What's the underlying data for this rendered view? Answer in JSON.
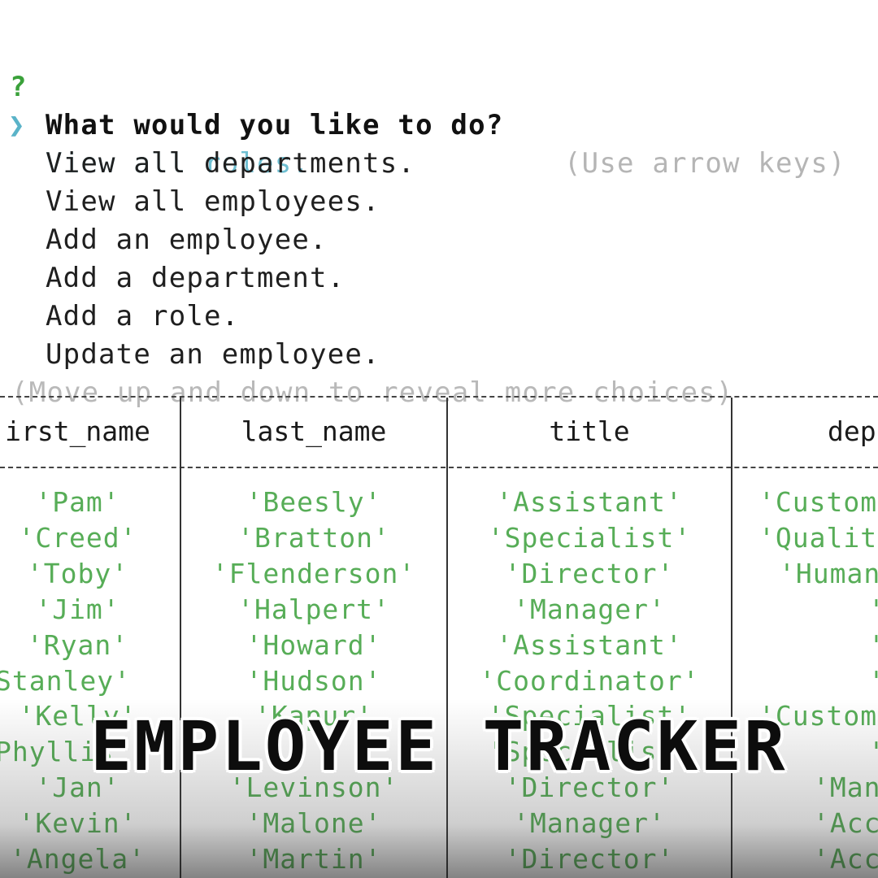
{
  "prompt": {
    "question_mark": "?",
    "question": "What would you like to do?",
    "hint": "(Use arrow keys)",
    "pointer": "❯",
    "choices": [
      "View all roles.",
      "View all departments.",
      "View all employees.",
      "Add an employee.",
      "Add a department.",
      "Add a role.",
      "Update an employee."
    ],
    "selected_index": 0,
    "more_hint": "(Move up and down to reveal more choices)"
  },
  "table": {
    "headers": [
      "irst_name",
      "last_name",
      "title",
      "dep"
    ],
    "rows": [
      [
        "'Pam'",
        "'Beesly'",
        "'Assistant'",
        "'Custom"
      ],
      [
        "'Creed'",
        "'Bratton'",
        "'Specialist'",
        "'Qualit"
      ],
      [
        "'Toby'",
        "'Flenderson'",
        "'Director'",
        "'Human"
      ],
      [
        "'Jim'",
        "'Halpert'",
        "'Manager'",
        "'"
      ],
      [
        "'Ryan'",
        "'Howard'",
        "'Assistant'",
        "'"
      ],
      [
        "Stanley'",
        "'Hudson'",
        "'Coordinator'",
        "'"
      ],
      [
        "'Kelly'",
        "'Kapur'",
        "'Specialist'",
        "'Custom"
      ],
      [
        "Phyllis",
        "",
        "'Specialist'",
        "'"
      ],
      [
        "'Jan'",
        "'Levinson'",
        "'Director'",
        "'Man"
      ],
      [
        "'Kevin'",
        "'Malone'",
        "'Manager'",
        "'Acc"
      ],
      [
        "'Angela'",
        "'Martin'",
        "'Director'",
        "'Acc"
      ]
    ]
  },
  "banner": {
    "title": "EMPLOYEE TRACKER"
  },
  "colors": {
    "question_mark": "#3aa13a",
    "selected_choice": "#6fbfd2",
    "cell_text": "#57ad57",
    "hint_text": "#b5b5b5"
  }
}
